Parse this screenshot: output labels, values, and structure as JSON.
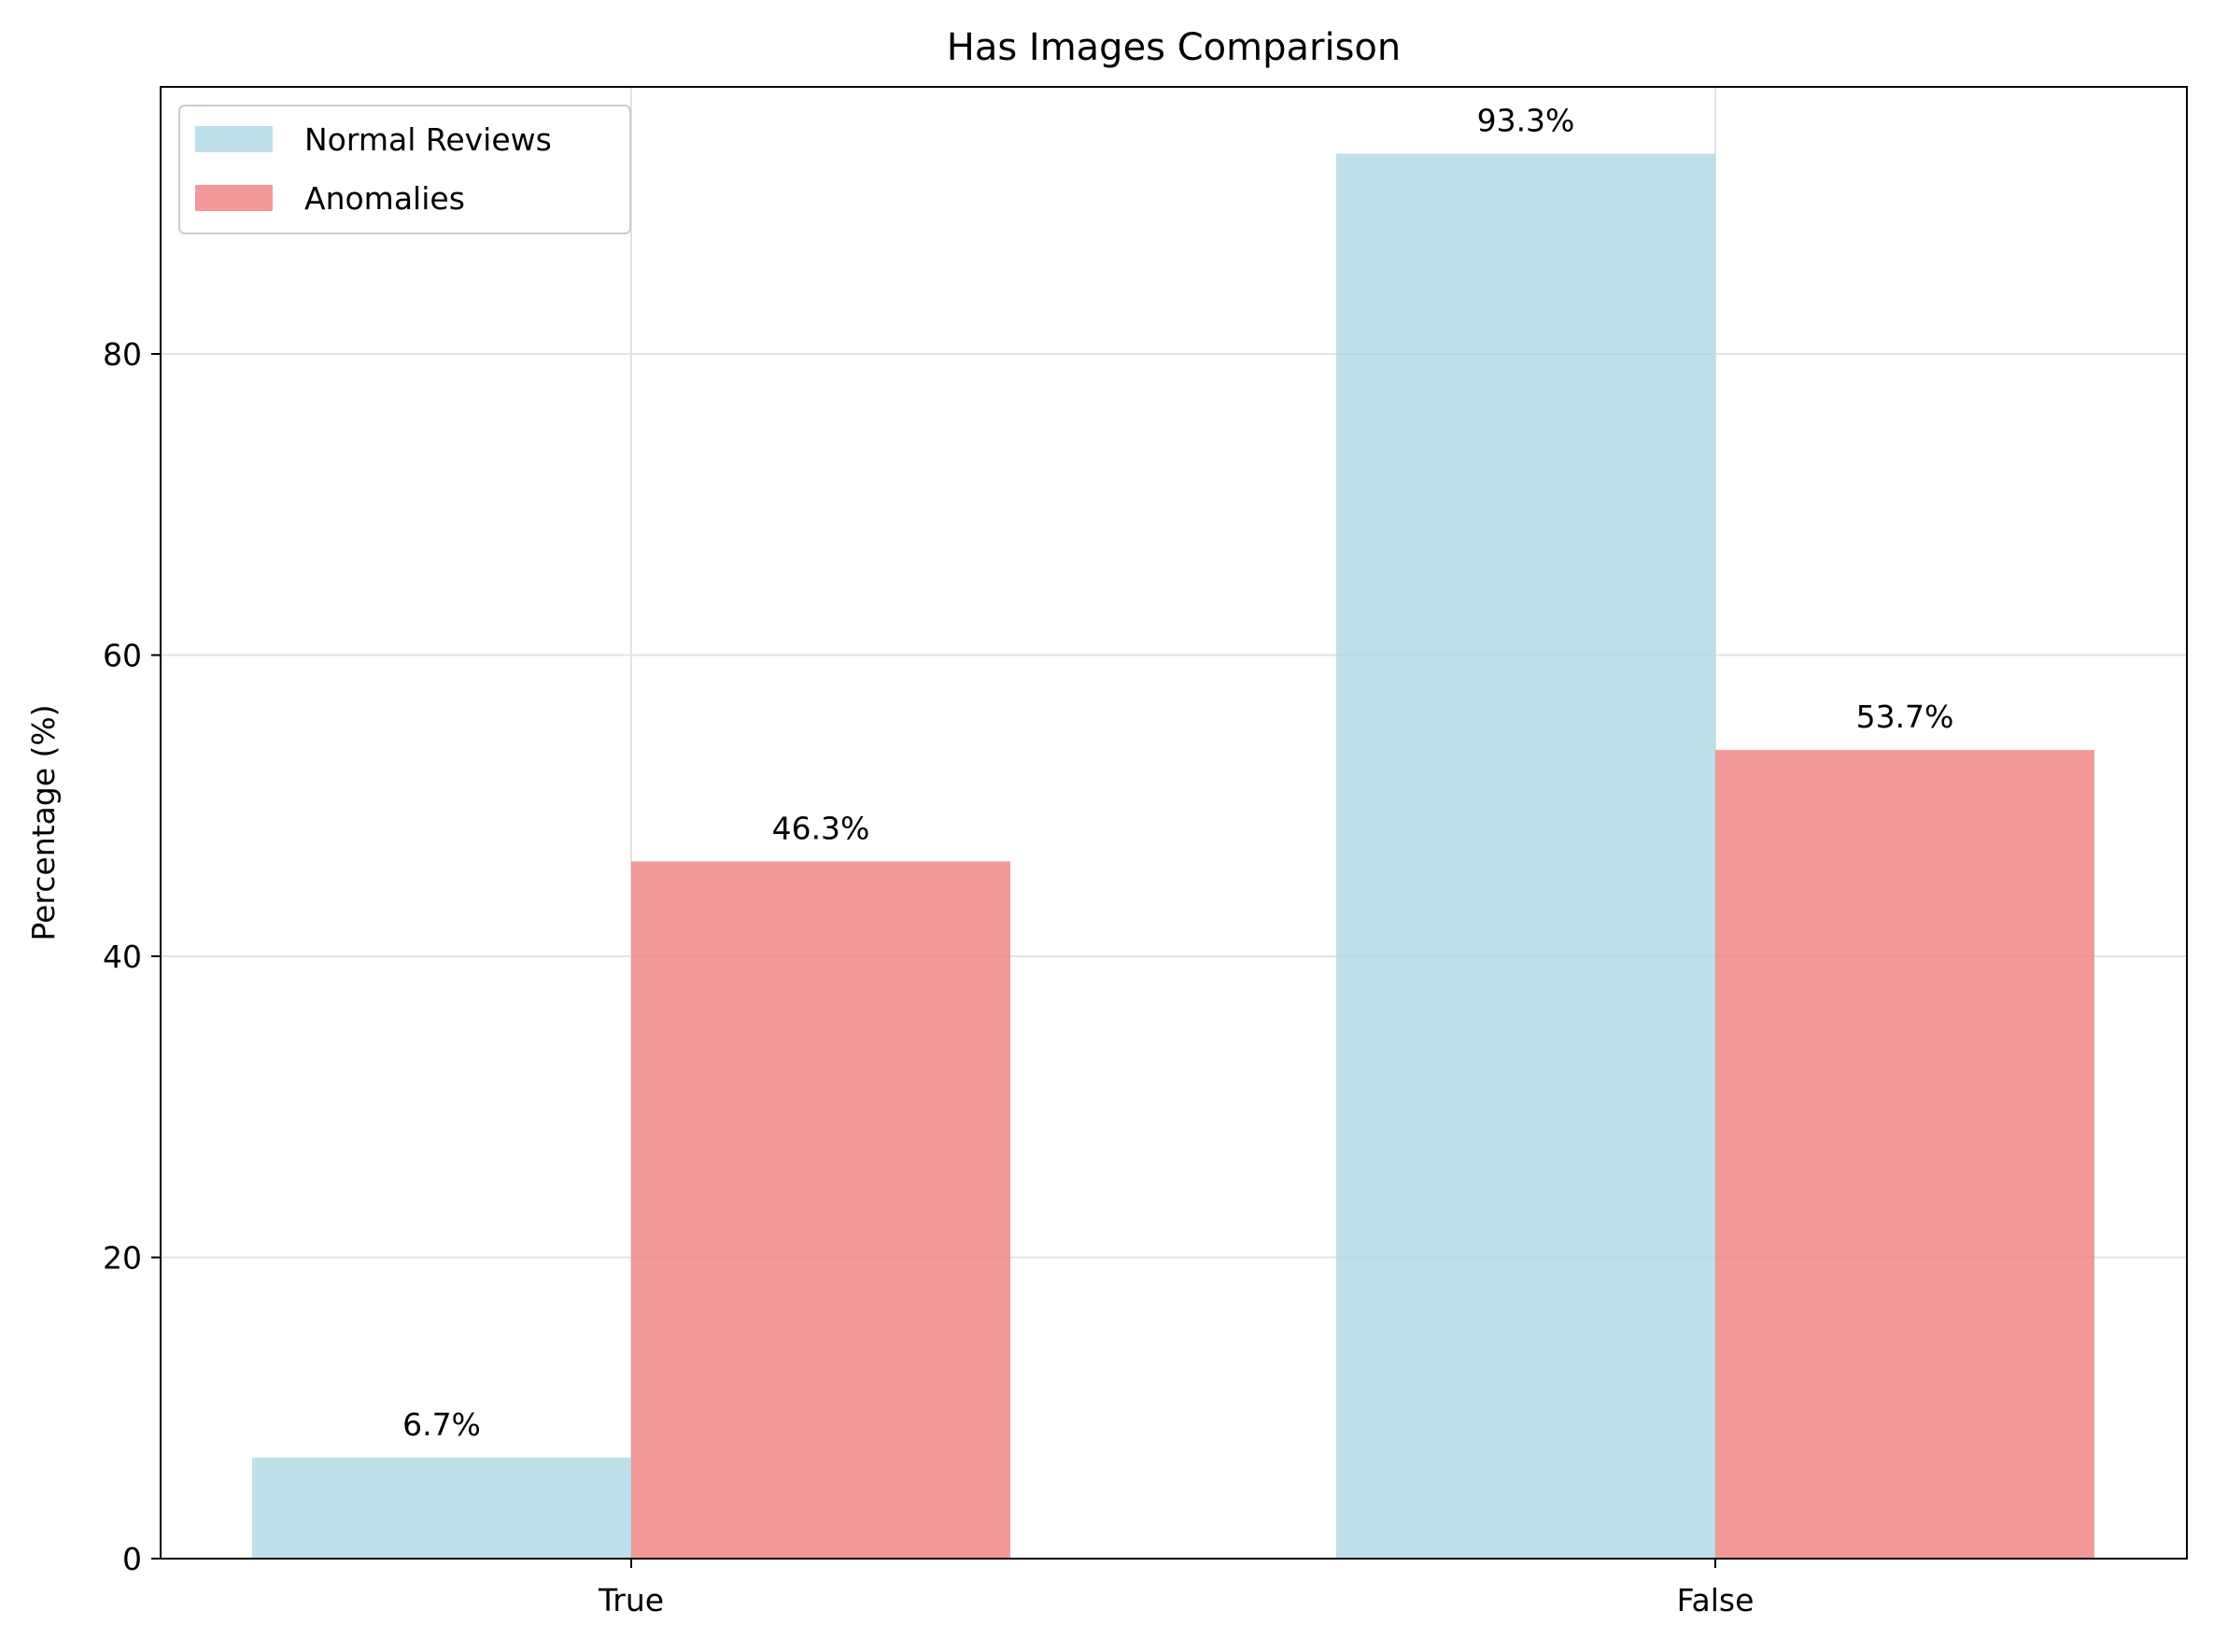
{
  "chart_data": {
    "type": "bar",
    "title": "Has Images Comparison",
    "xlabel": "",
    "ylabel": "Percentage (%)",
    "categories": [
      "True",
      "False"
    ],
    "series": [
      {
        "name": "Normal Reviews",
        "values": [
          6.7,
          93.3
        ],
        "labels": [
          "6.7%",
          "93.3%"
        ],
        "color": "#add8e6"
      },
      {
        "name": "Anomalies",
        "values": [
          46.3,
          53.7
        ],
        "labels": [
          "46.3%",
          "53.7%"
        ],
        "color": "#f08080"
      }
    ],
    "ylim": [
      0,
      98
    ],
    "yticks": [
      0,
      20,
      40,
      60,
      80
    ],
    "grid": true,
    "legend": "upper left"
  }
}
